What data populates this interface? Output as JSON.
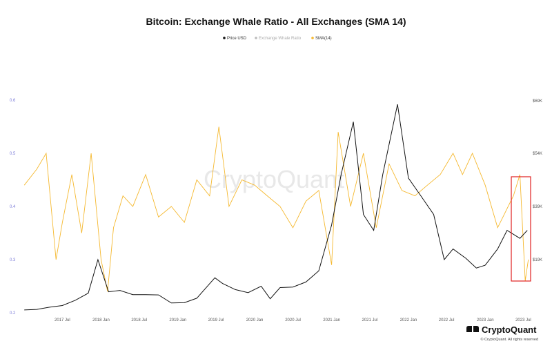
{
  "chart_data": {
    "type": "line",
    "title": "Bitcoin: Exchange Whale Ratio - All Exchanges (SMA 14)",
    "legend": [
      {
        "label": "Price USD",
        "color": "#111111"
      },
      {
        "label": "Exchange Whale Ratio",
        "color": "#bbbbbb"
      },
      {
        "label": "SMA(14)",
        "color": "#f5b82e"
      }
    ],
    "legend_position": "top-center",
    "x_ticks": [
      "2017 Jul",
      "2018 Jan",
      "2018 Jul",
      "2019 Jan",
      "2019 Jul",
      "2020 Jan",
      "2020 Jul",
      "2021 Jan",
      "2021 Jul",
      "2022 Jan",
      "2022 Jul",
      "2023 Jan",
      "2023 Jul"
    ],
    "y_left_ticks": [
      "0.2",
      "0.3",
      "0.4",
      "0.5",
      "0.6"
    ],
    "y_left_range": [
      0.2,
      0.6
    ],
    "y_right_ticks": [
      "$19K",
      "$39K",
      "$54K",
      "$69K"
    ],
    "y_right_values": [
      19000,
      39000,
      54000,
      69000
    ],
    "grid": false,
    "series": [
      {
        "name": "Price USD",
        "axis": "right",
        "color": "#111111",
        "x": [
          "2017-01-01",
          "2017-03-01",
          "2017-05-01",
          "2017-07-01",
          "2017-09-01",
          "2017-11-01",
          "2017-12-17",
          "2018-02-06",
          "2018-04-01",
          "2018-06-01",
          "2018-08-01",
          "2018-10-01",
          "2018-12-01",
          "2019-02-01",
          "2019-04-01",
          "2019-06-26",
          "2019-08-01",
          "2019-10-01",
          "2019-12-01",
          "2020-02-01",
          "2020-03-15",
          "2020-05-01",
          "2020-07-01",
          "2020-09-01",
          "2020-11-01",
          "2021-01-01",
          "2021-02-15",
          "2021-04-14",
          "2021-06-01",
          "2021-07-20",
          "2021-09-01",
          "2021-11-10",
          "2022-01-01",
          "2022-03-01",
          "2022-05-01",
          "2022-06-20",
          "2022-08-01",
          "2022-10-01",
          "2022-11-20",
          "2023-01-01",
          "2023-03-01",
          "2023-04-15",
          "2023-06-15",
          "2023-07-20"
        ],
        "y": [
          1000,
          1200,
          2000,
          2600,
          4500,
          7000,
          19000,
          7500,
          8000,
          6500,
          6500,
          6400,
          3500,
          3600,
          5200,
          12500,
          10500,
          8300,
          7200,
          9500,
          5000,
          9000,
          9200,
          11000,
          15000,
          32000,
          48000,
          63000,
          36000,
          30000,
          48000,
          68000,
          47000,
          42000,
          36000,
          19000,
          23000,
          19500,
          16000,
          17000,
          23000,
          30000,
          27000,
          30000
        ]
      },
      {
        "name": "SMA(14)",
        "axis": "left",
        "color": "#f5b82e",
        "x": [
          "2017-01-01",
          "2017-03-01",
          "2017-04-15",
          "2017-06-01",
          "2017-07-01",
          "2017-08-15",
          "2017-10-01",
          "2017-11-15",
          "2018-01-01",
          "2018-02-01",
          "2018-03-01",
          "2018-04-15",
          "2018-06-01",
          "2018-08-01",
          "2018-10-01",
          "2018-12-01",
          "2019-02-01",
          "2019-04-01",
          "2019-06-01",
          "2019-07-15",
          "2019-09-01",
          "2019-11-01",
          "2020-01-01",
          "2020-03-01",
          "2020-05-01",
          "2020-07-01",
          "2020-09-01",
          "2020-11-01",
          "2021-01-01",
          "2021-02-01",
          "2021-04-01",
          "2021-06-01",
          "2021-08-01",
          "2021-10-01",
          "2021-12-01",
          "2022-02-01",
          "2022-04-01",
          "2022-06-01",
          "2022-08-01",
          "2022-09-15",
          "2022-11-01",
          "2023-01-01",
          "2023-03-01",
          "2023-05-15",
          "2023-06-15",
          "2023-07-10",
          "2023-07-25"
        ],
        "y": [
          0.44,
          0.47,
          0.5,
          0.3,
          0.37,
          0.46,
          0.35,
          0.5,
          0.3,
          0.24,
          0.36,
          0.42,
          0.4,
          0.46,
          0.38,
          0.4,
          0.37,
          0.45,
          0.42,
          0.55,
          0.4,
          0.45,
          0.44,
          0.42,
          0.4,
          0.36,
          0.41,
          0.43,
          0.29,
          0.54,
          0.4,
          0.5,
          0.36,
          0.48,
          0.43,
          0.42,
          0.44,
          0.46,
          0.5,
          0.46,
          0.5,
          0.44,
          0.36,
          0.42,
          0.46,
          0.26,
          0.3
        ]
      }
    ]
  },
  "watermark": "CryptoQuant",
  "logo_text": "CryptoQuant",
  "copyright": "© CryptoQuant. All rights reserved",
  "highlight_box_color": "#e02020"
}
